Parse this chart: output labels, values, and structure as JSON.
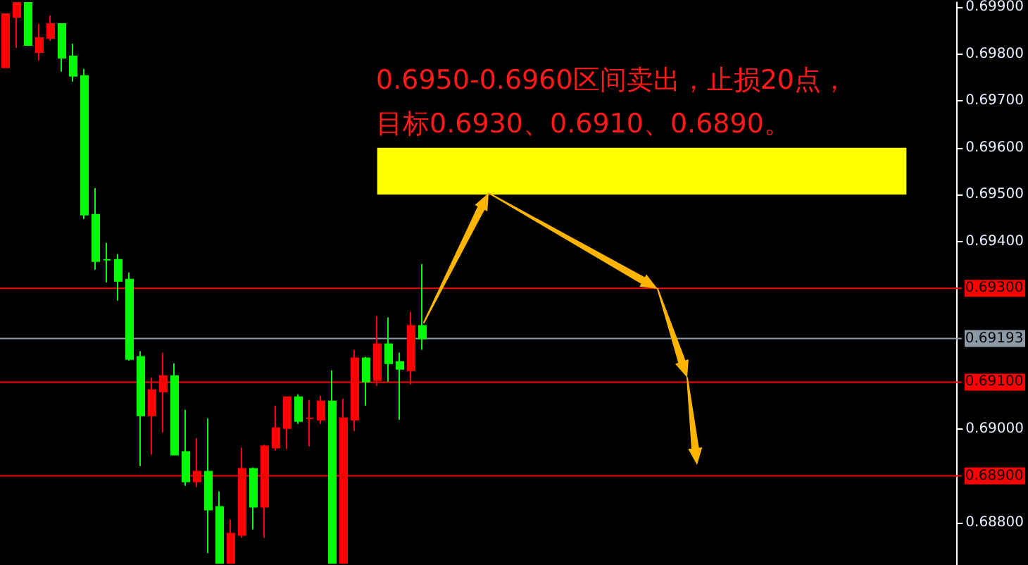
{
  "chart_data": {
    "type": "candlestick",
    "annotations": [
      "0.6950-0.6960区间卖出，止损20点，",
      "目标0.6930、0.6910、0.6890。"
    ],
    "categories": [
      null,
      null,
      null,
      null,
      null,
      null,
      null,
      null,
      null,
      null,
      null,
      null,
      null,
      null,
      null,
      null,
      null,
      null,
      null,
      null,
      null,
      null,
      null,
      null,
      null,
      null,
      null,
      null,
      null,
      null,
      null,
      null,
      null,
      null,
      null,
      null,
      null,
      null,
      null,
      null,
      null,
      null,
      null,
      null,
      null,
      null,
      null,
      null,
      null,
      null,
      null,
      null,
      null,
      null,
      null,
      null,
      null,
      null,
      null,
      null,
      null,
      null,
      null,
      null,
      null,
      null,
      null,
      null,
      null,
      null,
      null,
      null,
      null,
      null,
      null,
      null,
      null,
      null,
      null,
      null,
      null,
      null,
      null,
      null,
      null
    ],
    "ohlc": [
      [
        0.69771,
        0.69885,
        0.69771,
        0.69885
      ],
      [
        0.69879,
        0.69909,
        0.69813,
        0.69909
      ],
      [
        0.69909,
        0.69909,
        0.69819,
        0.69819
      ],
      [
        0.69804,
        0.69864,
        0.69786,
        0.69834
      ],
      [
        0.69834,
        0.69882,
        0.69828,
        0.69864
      ],
      [
        0.69864,
        0.69864,
        0.69762,
        0.69792
      ],
      [
        0.69795,
        0.69822,
        0.69741,
        0.69753
      ],
      [
        0.69753,
        0.69768,
        0.69448,
        0.69457
      ],
      [
        0.69457,
        0.69514,
        0.6934,
        0.69358
      ],
      [
        0.69361,
        0.69397,
        0.69313,
        0.69361
      ],
      [
        0.69361,
        0.69373,
        0.69274,
        0.69316
      ],
      [
        0.69319,
        0.69334,
        0.69146,
        0.69149
      ],
      [
        0.69154,
        0.69166,
        0.68921,
        0.69029
      ],
      [
        0.69029,
        0.6911,
        0.68945,
        0.69083
      ],
      [
        0.6908,
        0.69163,
        0.68993,
        0.69113
      ],
      [
        0.69113,
        0.6914,
        0.68945,
        0.68945
      ],
      [
        0.68951,
        0.69041,
        0.68879,
        0.68888
      ],
      [
        0.68888,
        0.68981,
        0.68876,
        0.68909
      ],
      [
        0.68909,
        0.69023,
        0.68735,
        0.68828
      ],
      [
        0.68834,
        0.68867,
        0.68714,
        0.68714
      ],
      [
        0.68714,
        0.68807,
        0.68714,
        0.68777
      ],
      [
        0.68774,
        0.6896,
        0.68768,
        0.68915
      ],
      [
        0.68915,
        0.68918,
        0.68786,
        0.68834
      ],
      [
        0.68834,
        0.68966,
        0.68768,
        0.68963
      ],
      [
        0.6896,
        0.6905,
        0.68954,
        0.69002
      ],
      [
        0.69002,
        0.69068,
        0.68957,
        0.69068
      ],
      [
        0.69068,
        0.69074,
        0.69011,
        0.69017
      ],
      [
        0.69023,
        0.69062,
        0.68963,
        0.69023
      ],
      [
        0.6902,
        0.69071,
        0.69011,
        0.69059
      ],
      [
        0.69059,
        0.69125,
        0.68714,
        0.68714
      ],
      [
        0.68714,
        0.69065,
        0.68714,
        0.69023
      ],
      [
        0.6902,
        0.69169,
        0.68996,
        0.69151
      ],
      [
        0.69151,
        0.69154,
        0.6905,
        0.69101
      ],
      [
        0.69104,
        0.69241,
        0.69092,
        0.69181
      ],
      [
        0.69181,
        0.69238,
        0.69101,
        0.6914
      ],
      [
        0.69143,
        0.69163,
        0.6902,
        0.69128
      ],
      [
        0.69125,
        0.6925,
        0.69095,
        0.6922
      ],
      [
        0.6922,
        0.69352,
        0.69169,
        0.69193
      ],
      null,
      null,
      null,
      null,
      null,
      null,
      null,
      null,
      null,
      null,
      null,
      null,
      null,
      null,
      null,
      null,
      null,
      null,
      null,
      null,
      null,
      null,
      null,
      null,
      null,
      null,
      null,
      null,
      null,
      null,
      null,
      null,
      null,
      null,
      null,
      null,
      null,
      null,
      null,
      null,
      null,
      null,
      null,
      null,
      null,
      null,
      null
    ],
    "colors": [
      "#ff0000",
      "#ff0000",
      "#00ff00",
      "#ff0000",
      "#ff0000",
      "#00ff00",
      "#00ff00",
      "#00ff00",
      "#00ff00",
      "#00ff00",
      "#00ff00",
      "#00ff00",
      "#00ff00",
      "#ff0000",
      "#ff0000",
      "#00ff00",
      "#00ff00",
      "#ff0000",
      "#00ff00",
      "#00ff00",
      "#ff0000",
      "#ff0000",
      "#00ff00",
      "#ff0000",
      "#ff0000",
      "#ff0000",
      "#00ff00",
      "#ff0000",
      "#ff0000",
      "#00ff00",
      "#ff0000",
      "#ff0000",
      "#00ff00",
      "#ff0000",
      "#00ff00",
      "#00ff00",
      "#ff0000",
      "#00ff00",
      null,
      null,
      null,
      null,
      null,
      null,
      null,
      null,
      null,
      null,
      null,
      null,
      null,
      null,
      null,
      null,
      null,
      null,
      null,
      null,
      null,
      null,
      null,
      null,
      null,
      null,
      null,
      null,
      null,
      null,
      null,
      null,
      null,
      null,
      null,
      null,
      null,
      null,
      null,
      null,
      null,
      null,
      null,
      null,
      null,
      null,
      null
    ],
    "ylim": [
      0.6871,
      0.6991
    ],
    "yticks": [
      {
        "value": 0.688,
        "label": "0.68800"
      },
      {
        "value": 0.69,
        "label": "0.69000"
      },
      {
        "value": 0.694,
        "label": "0.69400"
      },
      {
        "value": 0.695,
        "label": "0.69500"
      },
      {
        "value": 0.696,
        "label": "0.69600"
      },
      {
        "value": 0.697,
        "label": "0.69700"
      },
      {
        "value": 0.698,
        "label": "0.69800"
      },
      {
        "value": 0.699,
        "label": "0.69900"
      }
    ],
    "ref_lines": [
      {
        "axis": "y",
        "value": 0.693,
        "label": "0.69300",
        "color": "#ff0000"
      },
      {
        "axis": "y",
        "value": 0.69193,
        "label": "0.69193",
        "color": "#8c9aa8"
      },
      {
        "axis": "y",
        "value": 0.691,
        "label": "0.69100",
        "color": "#ff0000"
      },
      {
        "axis": "y",
        "value": 0.689,
        "label": "0.68900",
        "color": "#ff0000"
      }
    ],
    "bands": [
      {
        "axis": "y",
        "from": 0.695,
        "to": 0.696,
        "color": "#ffff00"
      }
    ],
    "grid": false
  }
}
